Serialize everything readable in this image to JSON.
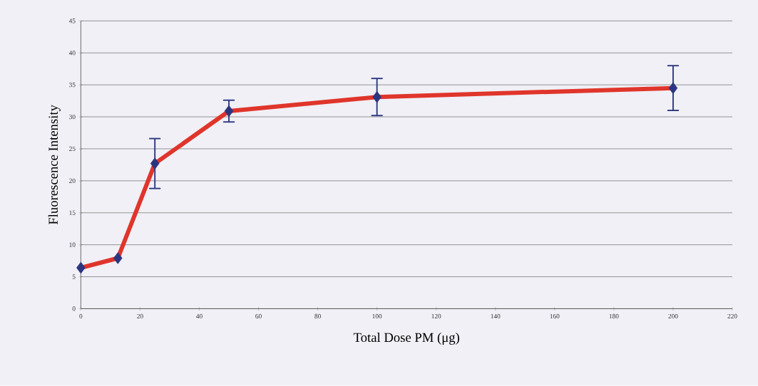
{
  "chart_data": {
    "type": "line",
    "xlabel": "Total Dose PM (μg)",
    "ylabel": "Fluorescence Intensity",
    "x": [
      0,
      12.5,
      25,
      50,
      100,
      200
    ],
    "series": [
      {
        "color": "#e0352b",
        "values": [
          6.4,
          7.9,
          22.7,
          30.9,
          33.1,
          34.5
        ],
        "errors": [
          null,
          null,
          3.9,
          1.7,
          2.9,
          3.5
        ]
      }
    ],
    "xlim": [
      0,
      220
    ],
    "xticks": [
      0,
      20,
      40,
      60,
      80,
      100,
      120,
      140,
      160,
      180,
      200,
      220
    ],
    "ylim": [
      0,
      45
    ],
    "yticks": [
      0,
      5,
      10,
      15,
      20,
      25,
      30,
      35,
      40,
      45
    ],
    "grid": "y",
    "marker": "diamond",
    "line_style": "solid"
  }
}
